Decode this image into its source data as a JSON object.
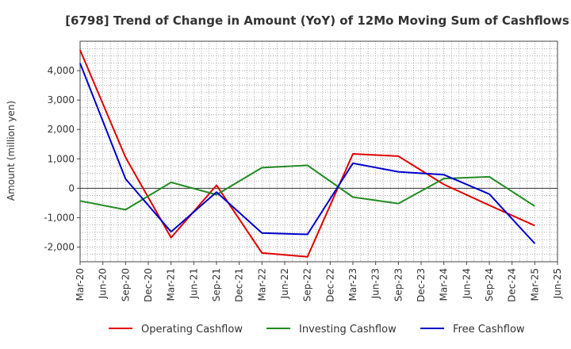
{
  "chart_data": {
    "type": "line",
    "title": "[6798]  Trend of Change in Amount (YoY) of 12Mo Moving Sum of Cashflows",
    "xlabel": "",
    "ylabel": "Amount (million yen)",
    "ylim": [
      -2500,
      5000
    ],
    "yticks": [
      -2000,
      -1000,
      0,
      1000,
      2000,
      3000,
      4000
    ],
    "ytick_labels": [
      "-2,000",
      "-1,000",
      "0",
      "1,000",
      "2,000",
      "3,000",
      "4,000"
    ],
    "x_categories": [
      "Mar-20",
      "Jun-20",
      "Sep-20",
      "Dec-20",
      "Mar-21",
      "Jun-21",
      "Sep-21",
      "Dec-21",
      "Mar-22",
      "Jun-22",
      "Sep-22",
      "Dec-22",
      "Mar-23",
      "Jun-23",
      "Sep-23",
      "Dec-23",
      "Mar-24",
      "Jun-24",
      "Sep-24",
      "Dec-24",
      "Mar-25",
      "Jun-25"
    ],
    "grid": true,
    "legend_position": "bottom",
    "series": [
      {
        "name": "Operating Cashflow",
        "color": "#e00000",
        "points": [
          [
            "Mar-20",
            4700
          ],
          [
            "Sep-20",
            1050
          ],
          [
            "Mar-21",
            -1680
          ],
          [
            "Sep-21",
            100
          ],
          [
            "Mar-22",
            -2200
          ],
          [
            "Sep-22",
            -2330
          ],
          [
            "Mar-23",
            1170
          ],
          [
            "Sep-23",
            1090
          ],
          [
            "Mar-24",
            130
          ],
          [
            "Sep-24",
            -580
          ],
          [
            "Mar-25",
            -1270
          ]
        ]
      },
      {
        "name": "Investing Cashflow",
        "color": "#228b22",
        "points": [
          [
            "Mar-20",
            -430
          ],
          [
            "Sep-20",
            -730
          ],
          [
            "Mar-21",
            200
          ],
          [
            "Sep-21",
            -220
          ],
          [
            "Mar-22",
            700
          ],
          [
            "Sep-22",
            780
          ],
          [
            "Mar-23",
            -300
          ],
          [
            "Sep-23",
            -520
          ],
          [
            "Mar-24",
            330
          ],
          [
            "Sep-24",
            390
          ],
          [
            "Mar-25",
            -610
          ]
        ]
      },
      {
        "name": "Free Cashflow",
        "color": "#0000cc",
        "points": [
          [
            "Mar-20",
            4250
          ],
          [
            "Sep-20",
            320
          ],
          [
            "Mar-21",
            -1480
          ],
          [
            "Sep-21",
            -130
          ],
          [
            "Mar-22",
            -1520
          ],
          [
            "Sep-22",
            -1570
          ],
          [
            "Mar-23",
            850
          ],
          [
            "Sep-23",
            560
          ],
          [
            "Mar-24",
            460
          ],
          [
            "Sep-24",
            -200
          ],
          [
            "Mar-25",
            -1880
          ]
        ]
      }
    ]
  }
}
